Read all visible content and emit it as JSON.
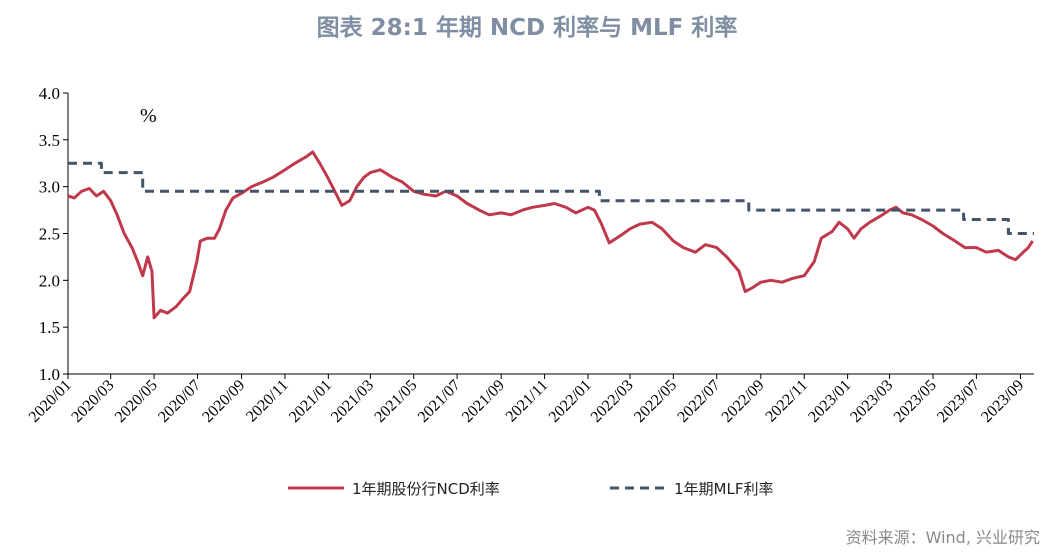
{
  "title": "图表 28:1 年期 NCD 利率与 MLF 利率",
  "source": "资料来源：Wind, 兴业研究",
  "chart_data": {
    "type": "line",
    "unit_label": "%",
    "ylim": [
      1.0,
      4.0
    ],
    "yticks": [
      "1.0",
      "1.5",
      "2.0",
      "2.5",
      "3.0",
      "3.5",
      "4.0"
    ],
    "xlim": [
      "2020-01-01",
      "2023-09-20"
    ],
    "xticks": [
      "2020/01",
      "2020/03",
      "2020/05",
      "2020/07",
      "2020/09",
      "2020/11",
      "2021/01",
      "2021/03",
      "2021/05",
      "2021/07",
      "2021/09",
      "2021/11",
      "2022/01",
      "2022/03",
      "2022/05",
      "2022/07",
      "2022/09",
      "2022/11",
      "2023/01",
      "2023/03",
      "2023/05",
      "2023/07",
      "2023/09"
    ],
    "grid": false,
    "legend_position": "bottom",
    "series": [
      {
        "name": "1年期股份行NCD利率",
        "color": "#c0394b",
        "style": "solid",
        "points": [
          [
            "2020-01-01",
            2.9
          ],
          [
            "2020-01-10",
            2.88
          ],
          [
            "2020-01-20",
            2.95
          ],
          [
            "2020-01-31",
            2.98
          ],
          [
            "2020-02-10",
            2.9
          ],
          [
            "2020-02-20",
            2.95
          ],
          [
            "2020-03-01",
            2.85
          ],
          [
            "2020-03-10",
            2.7
          ],
          [
            "2020-03-20",
            2.5
          ],
          [
            "2020-03-31",
            2.35
          ],
          [
            "2020-04-08",
            2.2
          ],
          [
            "2020-04-15",
            2.05
          ],
          [
            "2020-04-22",
            2.25
          ],
          [
            "2020-04-28",
            2.1
          ],
          [
            "2020-05-01",
            1.6
          ],
          [
            "2020-05-10",
            1.68
          ],
          [
            "2020-05-20",
            1.65
          ],
          [
            "2020-06-01",
            1.72
          ],
          [
            "2020-06-10",
            1.8
          ],
          [
            "2020-06-20",
            1.88
          ],
          [
            "2020-06-30",
            2.2
          ],
          [
            "2020-07-05",
            2.42
          ],
          [
            "2020-07-15",
            2.45
          ],
          [
            "2020-07-25",
            2.45
          ],
          [
            "2020-08-01",
            2.55
          ],
          [
            "2020-08-10",
            2.75
          ],
          [
            "2020-08-20",
            2.88
          ],
          [
            "2020-09-01",
            2.93
          ],
          [
            "2020-09-15",
            3.0
          ],
          [
            "2020-10-01",
            3.05
          ],
          [
            "2020-10-15",
            3.1
          ],
          [
            "2020-11-01",
            3.18
          ],
          [
            "2020-11-15",
            3.25
          ],
          [
            "2020-12-01",
            3.32
          ],
          [
            "2020-12-10",
            3.37
          ],
          [
            "2020-12-20",
            3.25
          ],
          [
            "2020-12-31",
            3.1
          ],
          [
            "2021-01-10",
            2.95
          ],
          [
            "2021-01-20",
            2.8
          ],
          [
            "2021-01-31",
            2.85
          ],
          [
            "2021-02-10",
            3.0
          ],
          [
            "2021-02-20",
            3.1
          ],
          [
            "2021-03-01",
            3.15
          ],
          [
            "2021-03-15",
            3.18
          ],
          [
            "2021-04-01",
            3.1
          ],
          [
            "2021-04-15",
            3.05
          ],
          [
            "2021-05-01",
            2.95
          ],
          [
            "2021-05-15",
            2.92
          ],
          [
            "2021-06-01",
            2.9
          ],
          [
            "2021-06-15",
            2.95
          ],
          [
            "2021-07-01",
            2.9
          ],
          [
            "2021-07-15",
            2.82
          ],
          [
            "2021-08-01",
            2.75
          ],
          [
            "2021-08-15",
            2.7
          ],
          [
            "2021-09-01",
            2.72
          ],
          [
            "2021-09-15",
            2.7
          ],
          [
            "2021-10-01",
            2.75
          ],
          [
            "2021-10-15",
            2.78
          ],
          [
            "2021-11-01",
            2.8
          ],
          [
            "2021-11-15",
            2.82
          ],
          [
            "2021-12-01",
            2.78
          ],
          [
            "2021-12-15",
            2.72
          ],
          [
            "2022-01-01",
            2.78
          ],
          [
            "2022-01-10",
            2.75
          ],
          [
            "2022-01-20",
            2.6
          ],
          [
            "2022-01-31",
            2.4
          ],
          [
            "2022-02-10",
            2.45
          ],
          [
            "2022-02-20",
            2.5
          ],
          [
            "2022-03-01",
            2.55
          ],
          [
            "2022-03-15",
            2.6
          ],
          [
            "2022-04-01",
            2.62
          ],
          [
            "2022-04-15",
            2.55
          ],
          [
            "2022-05-01",
            2.42
          ],
          [
            "2022-05-15",
            2.35
          ],
          [
            "2022-06-01",
            2.3
          ],
          [
            "2022-06-15",
            2.38
          ],
          [
            "2022-07-01",
            2.35
          ],
          [
            "2022-07-15",
            2.25
          ],
          [
            "2022-08-01",
            2.1
          ],
          [
            "2022-08-10",
            1.88
          ],
          [
            "2022-08-20",
            1.92
          ],
          [
            "2022-09-01",
            1.98
          ],
          [
            "2022-09-15",
            2.0
          ],
          [
            "2022-10-01",
            1.98
          ],
          [
            "2022-10-15",
            2.02
          ],
          [
            "2022-11-01",
            2.05
          ],
          [
            "2022-11-15",
            2.2
          ],
          [
            "2022-11-25",
            2.45
          ],
          [
            "2022-12-10",
            2.52
          ],
          [
            "2022-12-20",
            2.62
          ],
          [
            "2023-01-01",
            2.55
          ],
          [
            "2023-01-10",
            2.45
          ],
          [
            "2023-01-20",
            2.55
          ],
          [
            "2023-02-01",
            2.62
          ],
          [
            "2023-02-15",
            2.68
          ],
          [
            "2023-03-01",
            2.75
          ],
          [
            "2023-03-10",
            2.78
          ],
          [
            "2023-03-20",
            2.72
          ],
          [
            "2023-04-01",
            2.7
          ],
          [
            "2023-04-15",
            2.65
          ],
          [
            "2023-05-01",
            2.58
          ],
          [
            "2023-05-15",
            2.5
          ],
          [
            "2023-06-01",
            2.42
          ],
          [
            "2023-06-15",
            2.35
          ],
          [
            "2023-07-01",
            2.35
          ],
          [
            "2023-07-15",
            2.3
          ],
          [
            "2023-08-01",
            2.32
          ],
          [
            "2023-08-15",
            2.25
          ],
          [
            "2023-08-25",
            2.22
          ],
          [
            "2023-09-05",
            2.3
          ],
          [
            "2023-09-12",
            2.35
          ],
          [
            "2023-09-18",
            2.42
          ]
        ]
      },
      {
        "name": "1年期MLF利率",
        "color": "#44546a",
        "style": "dashed",
        "points": [
          [
            "2020-01-01",
            3.25
          ],
          [
            "2020-02-17",
            3.25
          ],
          [
            "2020-02-17",
            3.15
          ],
          [
            "2020-04-15",
            3.15
          ],
          [
            "2020-04-15",
            2.95
          ],
          [
            "2022-01-17",
            2.95
          ],
          [
            "2022-01-17",
            2.85
          ],
          [
            "2022-08-15",
            2.85
          ],
          [
            "2022-08-15",
            2.75
          ],
          [
            "2023-06-13",
            2.75
          ],
          [
            "2023-06-13",
            2.65
          ],
          [
            "2023-08-15",
            2.65
          ],
          [
            "2023-08-15",
            2.5
          ],
          [
            "2023-09-20",
            2.5
          ]
        ]
      }
    ]
  }
}
